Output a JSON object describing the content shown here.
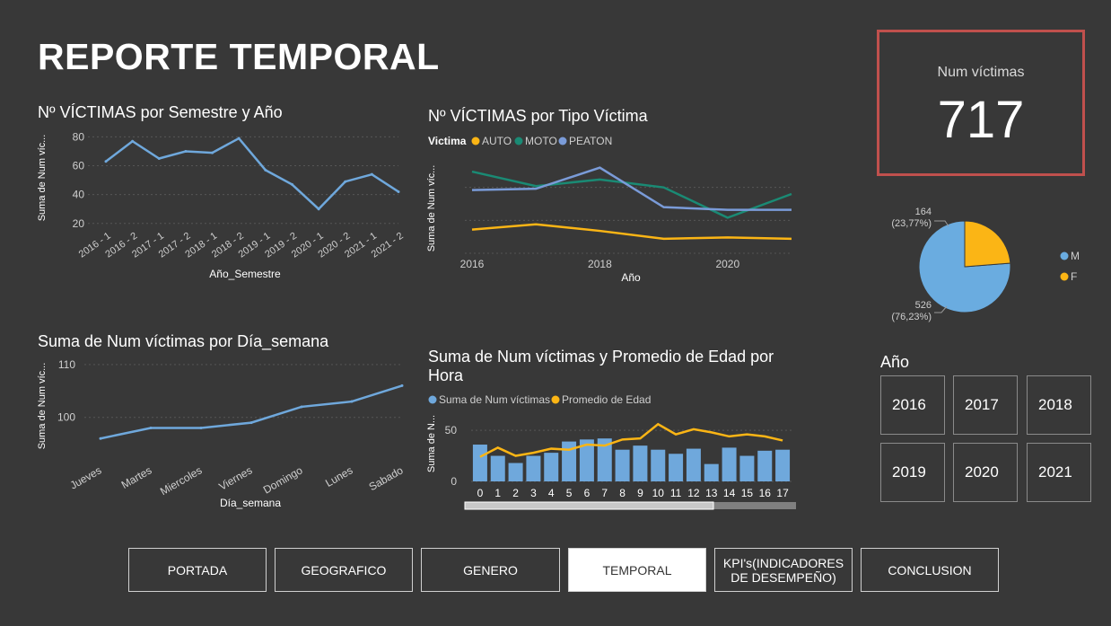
{
  "page": {
    "title": "REPORTE TEMPORAL"
  },
  "kpi": {
    "label": "Num víctimas",
    "value": "717"
  },
  "colors": {
    "blue": "#6fa8dc",
    "auto": "#fbb515",
    "moto": "#1a8a74",
    "peaton": "#7a9bd8",
    "male": "#6aace0",
    "female": "#fbb515",
    "kpi_border": "#c0504d"
  },
  "year_slicer": {
    "title": "Año",
    "years": [
      "2016",
      "2017",
      "2018",
      "2019",
      "2020",
      "2021"
    ]
  },
  "nav": {
    "buttons": [
      "PORTADA",
      "GEOGRAFICO",
      "GENERO",
      "TEMPORAL",
      "KPI's(INDICADORES DE DESEMPEÑO)",
      "CONCLUSION"
    ],
    "active": "TEMPORAL"
  },
  "chart_data": [
    {
      "id": "semestre",
      "type": "line",
      "title": "Nº VÍCTIMAS por Semestre y Año",
      "xlabel": "Año_Semestre",
      "ylabel": "Suma de Num víc...",
      "categories": [
        "2016 - 1",
        "2016 - 2",
        "2017 - 1",
        "2017 - 2",
        "2018 - 1",
        "2018 - 2",
        "2019 - 1",
        "2019 - 2",
        "2020 - 1",
        "2020 - 2",
        "2021 - 1",
        "2021 - 2"
      ],
      "values": [
        63,
        77,
        65,
        70,
        69,
        79,
        57,
        47,
        30,
        49,
        54,
        42
      ],
      "yticks": [
        20,
        40,
        60,
        80
      ],
      "ylim": [
        18,
        84
      ],
      "grid": true
    },
    {
      "id": "tipo",
      "type": "line",
      "title": "Nº VÍCTIMAS por Tipo Víctima",
      "legend_title": "Victima",
      "xlabel": "Año",
      "ylabel": "Suma de Num víc...",
      "x": [
        2016,
        2017,
        2018,
        2019,
        2020,
        2021
      ],
      "xticks": [
        "2016",
        "2018",
        "2020"
      ],
      "series": [
        {
          "name": "AUTO",
          "values": [
            18,
            22,
            17,
            11,
            12,
            11
          ]
        },
        {
          "name": "MOTO",
          "values": [
            62,
            51,
            56,
            50,
            27,
            45
          ]
        },
        {
          "name": "PEATON",
          "values": [
            48,
            49,
            65,
            35,
            33,
            33
          ]
        }
      ],
      "ylim": [
        0,
        75
      ],
      "grid": true
    },
    {
      "id": "genero",
      "type": "pie",
      "categories": [
        "M",
        "F"
      ],
      "values": [
        526,
        164
      ],
      "labels": [
        "526\n(76,23%)",
        "164\n(23,77%)"
      ]
    },
    {
      "id": "dia",
      "type": "line",
      "title": "Suma de Num víctimas por Día_semana",
      "xlabel": "Día_semana",
      "ylabel": "Suma de Num víc...",
      "categories": [
        "Jueves",
        "Martes",
        "Miercoles",
        "Viernes",
        "Domingo",
        "Lunes",
        "Sabado"
      ],
      "values": [
        96,
        98,
        98,
        99,
        102,
        103,
        106
      ],
      "yticks": [
        100,
        110
      ],
      "ylim": [
        94,
        111
      ],
      "grid": true
    },
    {
      "id": "hora",
      "type": "bar",
      "title": "Suma de Num víctimas y Promedio de Edad por Hora",
      "ylabel": "Suma de N...",
      "categories": [
        "0",
        "1",
        "2",
        "3",
        "4",
        "5",
        "6",
        "7",
        "8",
        "9",
        "10",
        "11",
        "12",
        "13",
        "14",
        "15",
        "16",
        "17"
      ],
      "series": [
        {
          "name": "Suma de Num víctimas",
          "type": "bar",
          "values": [
            36,
            25,
            18,
            25,
            28,
            39,
            41,
            42,
            31,
            35,
            31,
            27,
            32,
            17,
            33,
            25,
            30,
            31
          ]
        },
        {
          "name": "Promedio de Edad",
          "type": "line",
          "values": [
            24,
            33,
            25,
            28,
            32,
            31,
            36,
            35,
            41,
            42,
            56,
            46,
            51,
            48,
            44,
            46,
            44,
            40
          ]
        }
      ],
      "yticks": [
        0,
        50
      ],
      "ylim": [
        0,
        65
      ],
      "grid": true
    }
  ]
}
